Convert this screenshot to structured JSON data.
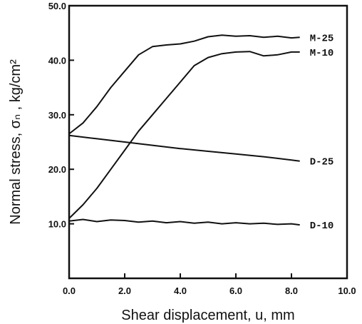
{
  "chart_data": {
    "type": "line",
    "title": "",
    "xlabel": "Shear displacement, u, mm",
    "ylabel": "Normal stress, σₙ , kg/cm²",
    "xlim": [
      0,
      10
    ],
    "ylim": [
      0,
      50
    ],
    "x_ticks": [
      "0.0",
      "2.0",
      "4.0",
      "6.0",
      "8.0",
      "10.0"
    ],
    "y_ticks": [
      "10.0",
      "20.0",
      "30.0",
      "40.0",
      "50.0"
    ],
    "grid": false,
    "series": [
      {
        "name": "M-25",
        "x": [
          0,
          0.5,
          1.0,
          1.5,
          2.0,
          2.5,
          3.0,
          3.5,
          4.0,
          4.5,
          5.0,
          5.5,
          6.0,
          6.5,
          7.0,
          7.5,
          8.0,
          8.3
        ],
        "y": [
          26.5,
          28.5,
          31.5,
          35,
          38,
          41,
          42.5,
          42.8,
          43,
          43.5,
          44.3,
          44.6,
          44.4,
          44.5,
          44.2,
          44.4,
          44.1,
          44.2
        ]
      },
      {
        "name": "M-10",
        "x": [
          0,
          0.5,
          1.0,
          1.5,
          2.0,
          2.5,
          3.0,
          3.5,
          4.0,
          4.5,
          5.0,
          5.5,
          6.0,
          6.5,
          7.0,
          7.5,
          8.0,
          8.3
        ],
        "y": [
          11,
          13.5,
          16.5,
          20,
          23.5,
          27,
          30,
          33,
          36,
          39,
          40.5,
          41.2,
          41.5,
          41.6,
          40.8,
          41,
          41.5,
          41.5
        ]
      },
      {
        "name": "D-25",
        "x": [
          0,
          1.0,
          2.0,
          3.0,
          4.0,
          5.0,
          6.0,
          7.0,
          8.0,
          8.3
        ],
        "y": [
          26.2,
          25.6,
          25.0,
          24.4,
          23.8,
          23.3,
          22.8,
          22.3,
          21.7,
          21.5
        ]
      },
      {
        "name": "D-10",
        "x": [
          0,
          0.5,
          1.0,
          1.5,
          2.0,
          2.5,
          3.0,
          3.5,
          4.0,
          4.5,
          5.0,
          5.5,
          6.0,
          6.5,
          7.0,
          7.5,
          8.0,
          8.3
        ],
        "y": [
          10.5,
          10.8,
          10.4,
          10.7,
          10.6,
          10.3,
          10.5,
          10.2,
          10.4,
          10.1,
          10.3,
          10.0,
          10.2,
          10.0,
          10.1,
          9.9,
          10.0,
          9.8
        ]
      }
    ]
  }
}
